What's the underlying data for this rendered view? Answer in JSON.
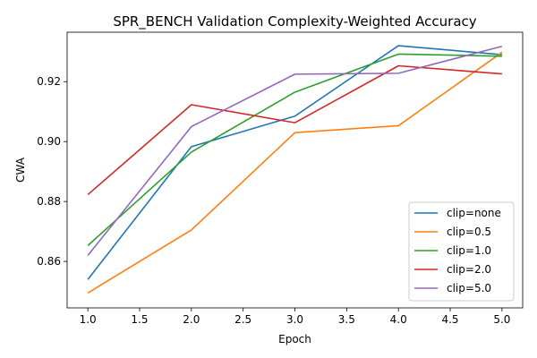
{
  "chart_data": {
    "type": "line",
    "title": "SPR_BENCH Validation Complexity-Weighted Accuracy",
    "xlabel": "Epoch",
    "ylabel": "CWA",
    "x": [
      1,
      2,
      3,
      4,
      5
    ],
    "xlim": [
      0.8,
      5.2
    ],
    "ylim": [
      0.8445,
      0.9365
    ],
    "xticks": [
      1.0,
      1.5,
      2.0,
      2.5,
      3.0,
      3.5,
      4.0,
      4.5,
      5.0
    ],
    "xtick_labels": [
      "1.0",
      "1.5",
      "2.0",
      "2.5",
      "3.0",
      "3.5",
      "4.0",
      "4.5",
      "5.0"
    ],
    "yticks": [
      0.86,
      0.88,
      0.9,
      0.92
    ],
    "ytick_labels": [
      "0.86",
      "0.88",
      "0.90",
      "0.92"
    ],
    "grid": false,
    "legend_position": "lower-right",
    "series": [
      {
        "name": "clip=none",
        "color": "#1f77b4",
        "values": [
          0.854,
          0.8983,
          0.9085,
          0.932,
          0.929
        ]
      },
      {
        "name": "clip=0.5",
        "color": "#ff7f0e",
        "values": [
          0.8495,
          0.8705,
          0.903,
          0.9053,
          0.9298
        ]
      },
      {
        "name": "clip=1.0",
        "color": "#2ca02c",
        "values": [
          0.8653,
          0.8965,
          0.9165,
          0.9292,
          0.9285
        ]
      },
      {
        "name": "clip=2.0",
        "color": "#d62728",
        "values": [
          0.8823,
          0.9123,
          0.9063,
          0.9253,
          0.9226
        ]
      },
      {
        "name": "clip=5.0",
        "color": "#9467bd",
        "values": [
          0.862,
          0.905,
          0.9225,
          0.9228,
          0.9318
        ]
      }
    ]
  }
}
